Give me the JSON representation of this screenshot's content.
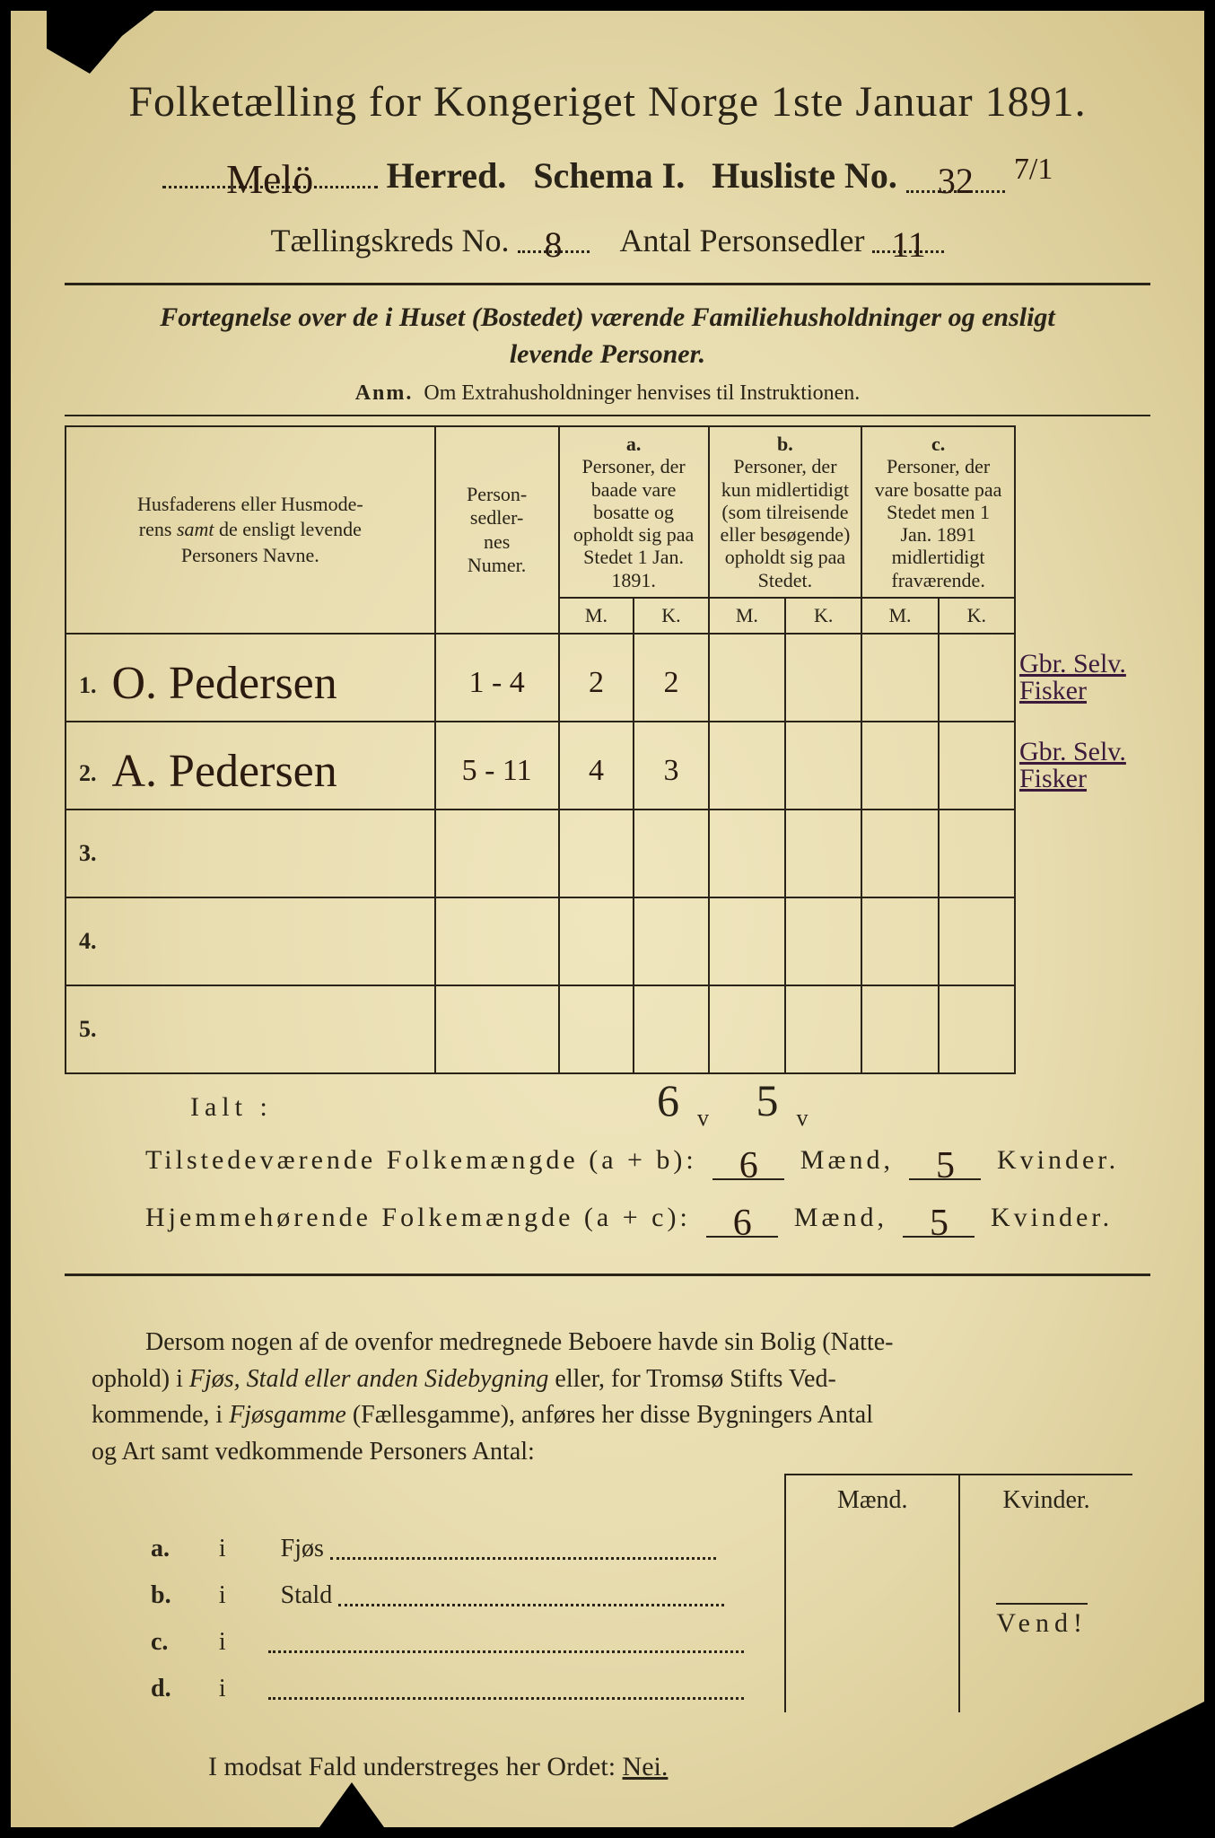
{
  "colors": {
    "paper": "#e8ddb0",
    "ink": "#2a2418",
    "handwriting": "#2b1a0f",
    "handwriting_margin": "#3b1a3b",
    "border": "#000000"
  },
  "title": "Folketælling for Kongeriget Norge 1ste Januar 1891.",
  "line2": {
    "herred_value": "Melö",
    "herred_label": "Herred.",
    "schema_label": "Schema I.",
    "husliste_label": "Husliste No.",
    "husliste_value": "32",
    "husliste_frac": "7/1"
  },
  "line3": {
    "kreds_label": "Tællingskreds No.",
    "kreds_value": "8",
    "antal_label": "Antal Personsedler",
    "antal_value": "11"
  },
  "intro": {
    "text1": "Fortegnelse over de i Huset (Bostedet) værende Familiehusholdninger og ensligt",
    "text2": "levende Personer.",
    "anm_label": "Anm.",
    "anm_text": "Om Extrahusholdninger henvises til Instruktionen."
  },
  "table": {
    "hdr_name": "Husfaderens eller Husmoderens samt de ensligt levende Personers Navne.",
    "hdr_num": "Person-\nsedler-\nnes\nNumer.",
    "hdr_a_tag": "a.",
    "hdr_a": "Personer, der baade vare bosatte og opholdt sig paa Stedet 1 Jan. 1891.",
    "hdr_b_tag": "b.",
    "hdr_b": "Personer, der kun midlertidigt (som tilreisende eller besøgende) opholdt sig paa Stedet.",
    "hdr_c_tag": "c.",
    "hdr_c": "Personer, der vare bosatte paa Stedet men 1 Jan. 1891 midlertidigt fraværende.",
    "mk_m": "M.",
    "mk_k": "K.",
    "rows": [
      {
        "n": "1.",
        "name": "O. Pedersen",
        "num": "1 - 4",
        "aM": "2",
        "aK": "2",
        "bM": "",
        "bK": "",
        "cM": "",
        "cK": "",
        "annot1": "Gbr. Selv.",
        "annot2": "Fisker"
      },
      {
        "n": "2.",
        "name": "A. Pedersen",
        "num": "5 - 11",
        "aM": "4",
        "aK": "3",
        "bM": "",
        "bK": "",
        "cM": "",
        "cK": "",
        "annot1": "Gbr. Selv.",
        "annot2": "Fisker"
      },
      {
        "n": "3.",
        "name": "",
        "num": "",
        "aM": "",
        "aK": "",
        "bM": "",
        "bK": "",
        "cM": "",
        "cK": "",
        "annot1": "",
        "annot2": ""
      },
      {
        "n": "4.",
        "name": "",
        "num": "",
        "aM": "",
        "aK": "",
        "bM": "",
        "bK": "",
        "cM": "",
        "cK": "",
        "annot1": "",
        "annot2": ""
      },
      {
        "n": "5.",
        "name": "",
        "num": "",
        "aM": "",
        "aK": "",
        "bM": "",
        "bK": "",
        "cM": "",
        "cK": "",
        "annot1": "",
        "annot2": ""
      }
    ]
  },
  "ialt": {
    "label": "Ialt :",
    "m": "6",
    "k": "5",
    "tick": "v"
  },
  "calc": {
    "present_label": "Tilstedeværende Folkemængde (a + b):",
    "home_label": "Hjemmehørende Folkemængde (a + c):",
    "maend": "Mænd,",
    "kvinder": "Kvinder.",
    "present_m": "6",
    "present_k": "5",
    "home_m": "6",
    "home_k": "5"
  },
  "para": "Dersom nogen af de ovenfor medregnede Beboere havde sin Bolig (Natteophold) i Fjøs, Stald eller anden Sidebygning eller, for Tromsø Stifts Vedkommende, i Fjøsgamme (Fællesgamme), anføres her disse Bygningers Antal og Art samt vedkommende Personers Antal:",
  "sub": {
    "hdr_m": "Mænd.",
    "hdr_k": "Kvinder.",
    "rows": [
      {
        "tag": "a.",
        "i": "i",
        "label": "Fjøs"
      },
      {
        "tag": "b.",
        "i": "i",
        "label": "Stald"
      },
      {
        "tag": "c.",
        "i": "i",
        "label": ""
      },
      {
        "tag": "d.",
        "i": "i",
        "label": ""
      }
    ]
  },
  "nei": {
    "text": "I modsat Fald understreges her Ordet:",
    "word": "Nei."
  },
  "vend": "Vend!"
}
